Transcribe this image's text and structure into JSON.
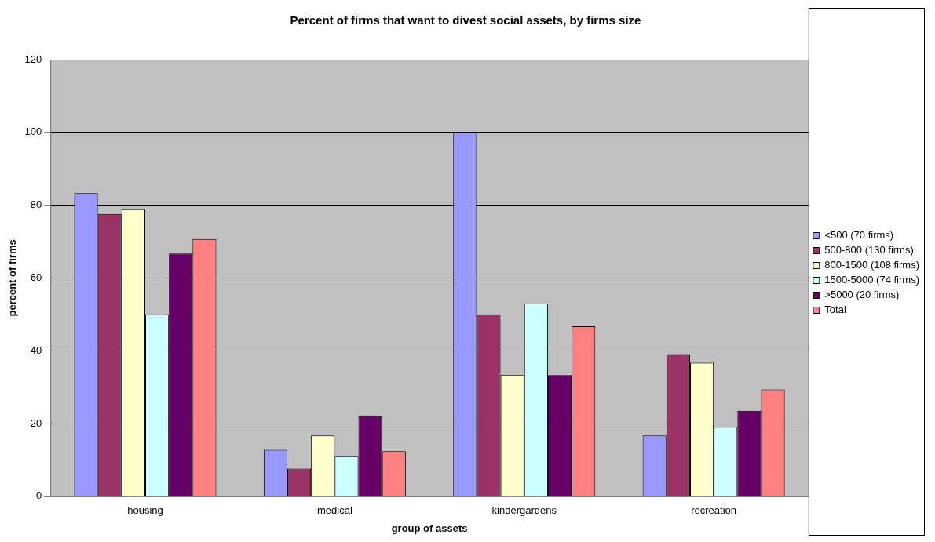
{
  "chart_data": {
    "type": "bar",
    "title": "Percent of firms that want to divest social assets, by firms size",
    "xlabel": "group of assets",
    "ylabel": "percent of firms",
    "categories": [
      "housing",
      "medical",
      "kindergardens",
      "recreation"
    ],
    "series": [
      {
        "name": "<500 (70 firms)",
        "color": "#9999ff",
        "values": [
          83.3,
          12.8,
          100,
          16.7
        ]
      },
      {
        "name": "500-800 (130 firms)",
        "color": "#993366",
        "values": [
          77.6,
          7.6,
          50,
          39.1
        ]
      },
      {
        "name": "800-1500 (108 firms)",
        "color": "#ffffcc",
        "values": [
          78.9,
          16.7,
          33.3,
          36.7
        ]
      },
      {
        "name": "1500-5000 (74 firms)",
        "color": "#ccffff",
        "values": [
          50,
          11.1,
          53,
          19.1
        ]
      },
      {
        "name": ">5000 (20 firms)",
        "color": "#660066",
        "values": [
          66.7,
          22.2,
          33.3,
          23.5
        ]
      },
      {
        "name": "Total",
        "color": "#ff8080",
        "values": [
          70.7,
          12.4,
          46.7,
          29.4
        ]
      }
    ],
    "ylim": [
      0,
      120
    ],
    "yticks": [
      0,
      20,
      40,
      60,
      80,
      100,
      120
    ],
    "grid": "y",
    "legend": "right"
  }
}
